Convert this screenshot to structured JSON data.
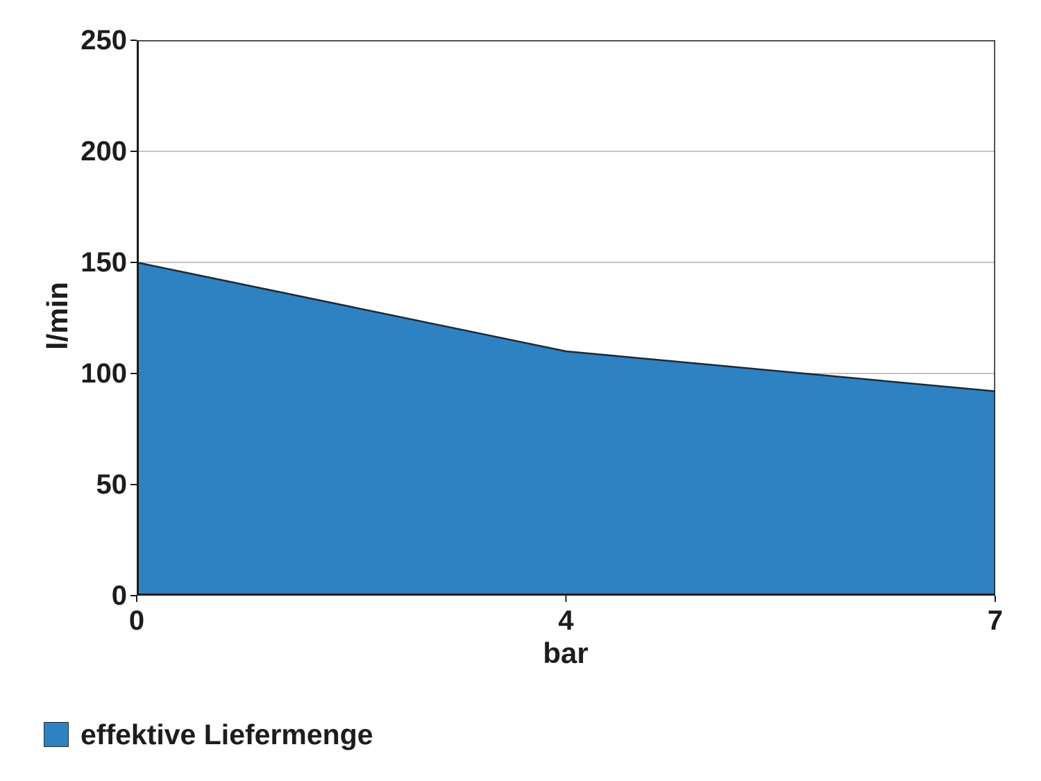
{
  "chart_data": {
    "type": "area",
    "title": "",
    "categories": [
      "0",
      "4",
      "7"
    ],
    "series": [
      {
        "name": "effektive Liefermenge",
        "values": [
          150,
          110,
          92
        ]
      }
    ],
    "xlabel": "bar",
    "ylabel": "l/min",
    "ylim": [
      0,
      250
    ],
    "yticks": [
      0,
      50,
      100,
      150,
      200,
      250
    ],
    "grid": "horizontal gridlines at 50, 100, 150, 200; plot area has black border",
    "legend_position": "bottom-left",
    "x_spacing": "category axis - labels 0, 4, 7 evenly spaced across plot width",
    "colors": {
      "area_fill": "#2e82c1",
      "area_stroke": "#1b2a38",
      "gridline": "#b0b0b0",
      "axis": "#1a1a1a",
      "text": "#1d1d1b",
      "background": "#ffffff"
    }
  }
}
